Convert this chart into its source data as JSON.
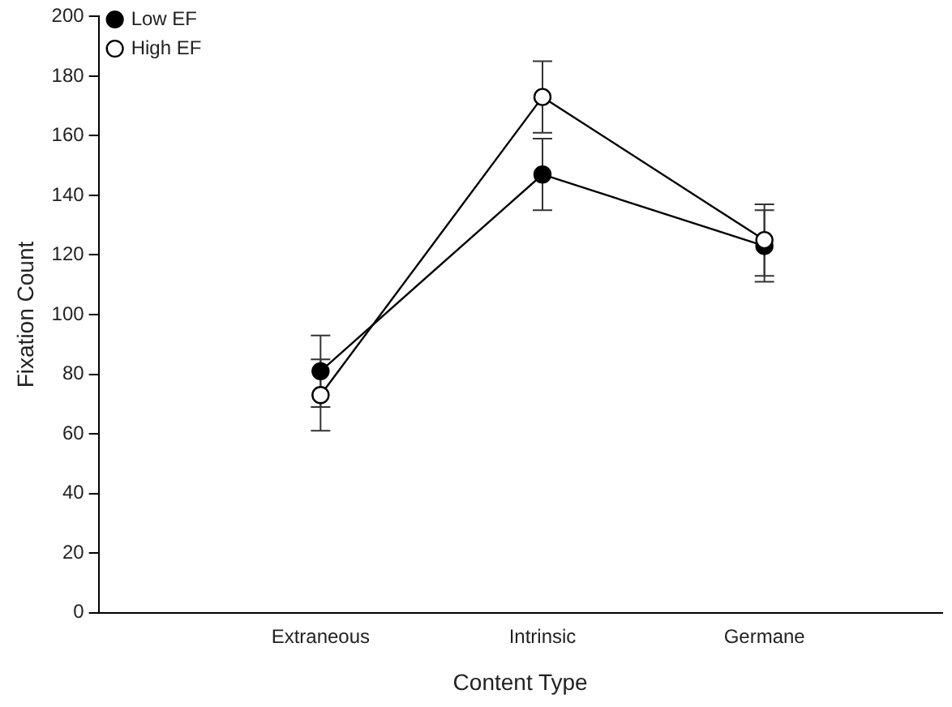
{
  "chart_data": {
    "type": "line",
    "xlabel": "Content Type",
    "ylabel": "Fixation Count",
    "categories": [
      "Extraneous",
      "Intrinsic",
      "Germane"
    ],
    "ylim": [
      0,
      200
    ],
    "yticks": [
      0,
      20,
      40,
      60,
      80,
      100,
      120,
      140,
      160,
      180,
      200
    ],
    "grid": false,
    "legend": "top left",
    "marker": "circle",
    "line_style": "solid",
    "series": [
      {
        "name": "Low EF",
        "color": "#000000",
        "values": [
          81,
          147,
          123
        ],
        "errors": [
          12,
          12,
          12
        ]
      },
      {
        "name": "High EF",
        "color": "#000000",
        "values": [
          73,
          173,
          125
        ],
        "errors": [
          12,
          12,
          12
        ]
      }
    ]
  }
}
